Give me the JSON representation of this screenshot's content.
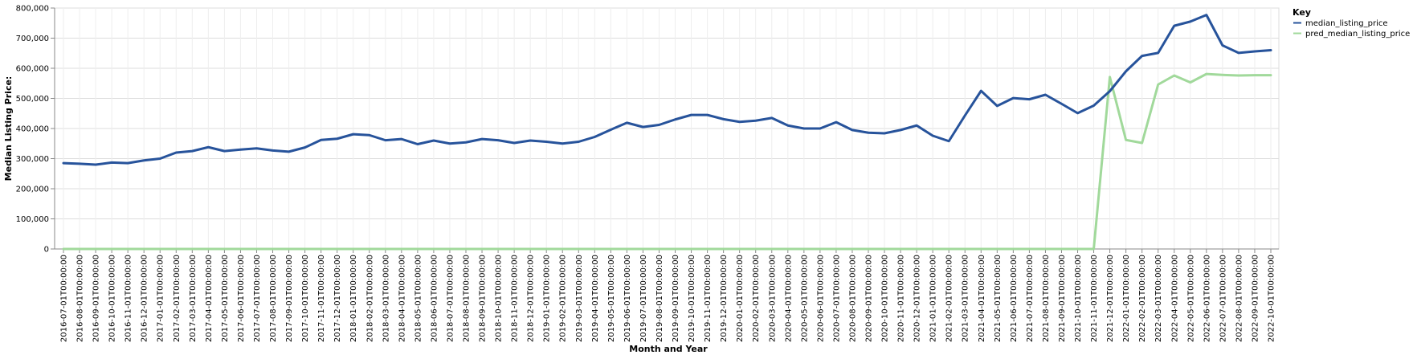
{
  "chart_data": {
    "type": "line",
    "xlabel": "Month and Year",
    "ylabel": "Median Listing Price:",
    "ylim": [
      0,
      800000
    ],
    "yticks": [
      0,
      100000,
      200000,
      300000,
      400000,
      500000,
      600000,
      700000,
      800000
    ],
    "ytick_labels": [
      "0",
      "100,000",
      "200,000",
      "300,000",
      "400,000",
      "500,000",
      "600,000",
      "700,000",
      "800,000"
    ],
    "grid": true,
    "legend": {
      "title": "Key",
      "placement": "right"
    },
    "x": [
      "2016-07-01T00:00:00",
      "2016-08-01T00:00:00",
      "2016-09-01T00:00:00",
      "2016-10-01T00:00:00",
      "2016-11-01T00:00:00",
      "2016-12-01T00:00:00",
      "2017-01-01T00:00:00",
      "2017-02-01T00:00:00",
      "2017-03-01T00:00:00",
      "2017-04-01T00:00:00",
      "2017-05-01T00:00:00",
      "2017-06-01T00:00:00",
      "2017-07-01T00:00:00",
      "2017-08-01T00:00:00",
      "2017-09-01T00:00:00",
      "2017-10-01T00:00:00",
      "2017-11-01T00:00:00",
      "2017-12-01T00:00:00",
      "2018-01-01T00:00:00",
      "2018-02-01T00:00:00",
      "2018-03-01T00:00:00",
      "2018-04-01T00:00:00",
      "2018-05-01T00:00:00",
      "2018-06-01T00:00:00",
      "2018-07-01T00:00:00",
      "2018-08-01T00:00:00",
      "2018-09-01T00:00:00",
      "2018-10-01T00:00:00",
      "2018-11-01T00:00:00",
      "2018-12-01T00:00:00",
      "2019-01-01T00:00:00",
      "2019-02-01T00:00:00",
      "2019-03-01T00:00:00",
      "2019-04-01T00:00:00",
      "2019-05-01T00:00:00",
      "2019-06-01T00:00:00",
      "2019-07-01T00:00:00",
      "2019-08-01T00:00:00",
      "2019-09-01T00:00:00",
      "2019-10-01T00:00:00",
      "2019-11-01T00:00:00",
      "2019-12-01T00:00:00",
      "2020-01-01T00:00:00",
      "2020-02-01T00:00:00",
      "2020-03-01T00:00:00",
      "2020-04-01T00:00:00",
      "2020-05-01T00:00:00",
      "2020-06-01T00:00:00",
      "2020-07-01T00:00:00",
      "2020-08-01T00:00:00",
      "2020-09-01T00:00:00",
      "2020-10-01T00:00:00",
      "2020-11-01T00:00:00",
      "2020-12-01T00:00:00",
      "2021-01-01T00:00:00",
      "2021-02-01T00:00:00",
      "2021-03-01T00:00:00",
      "2021-04-01T00:00:00",
      "2021-05-01T00:00:00",
      "2021-06-01T00:00:00",
      "2021-07-01T00:00:00",
      "2021-08-01T00:00:00",
      "2021-09-01T00:00:00",
      "2021-10-01T00:00:00",
      "2021-11-01T00:00:00",
      "2021-12-01T00:00:00",
      "2022-01-01T00:00:00",
      "2022-02-01T00:00:00",
      "2022-03-01T00:00:00",
      "2022-04-01T00:00:00",
      "2022-05-01T00:00:00",
      "2022-06-01T00:00:00",
      "2022-07-01T00:00:00",
      "2022-08-01T00:00:00",
      "2022-09-01T00:00:00",
      "2022-10-01T00:00:00"
    ],
    "series": [
      {
        "name": "median_listing_price",
        "color": "#27539b",
        "values": [
          285000,
          283000,
          280000,
          287000,
          285000,
          294000,
          300000,
          320000,
          325000,
          338000,
          325000,
          330000,
          334000,
          327000,
          323000,
          337000,
          362000,
          366000,
          381000,
          378000,
          361000,
          365000,
          348000,
          360000,
          350000,
          354000,
          365000,
          361000,
          352000,
          360000,
          356000,
          350000,
          356000,
          372000,
          396000,
          419000,
          405000,
          412000,
          430000,
          445000,
          445000,
          431000,
          422000,
          426000,
          435000,
          410000,
          400000,
          400000,
          421000,
          395000,
          386000,
          384000,
          395000,
          410000,
          376000,
          358000,
          443000,
          525000,
          475000,
          501000,
          497000,
          512000,
          482000,
          451000,
          476000,
          524000,
          590000,
          641000,
          651000,
          741000,
          755000,
          777000,
          676000,
          651000,
          656000,
          660000
        ]
      },
      {
        "name": "pred_median_listing_price",
        "color": "#a1d99b",
        "values": [
          0,
          0,
          0,
          0,
          0,
          0,
          0,
          0,
          0,
          0,
          0,
          0,
          0,
          0,
          0,
          0,
          0,
          0,
          0,
          0,
          0,
          0,
          0,
          0,
          0,
          0,
          0,
          0,
          0,
          0,
          0,
          0,
          0,
          0,
          0,
          0,
          0,
          0,
          0,
          0,
          0,
          0,
          0,
          0,
          0,
          0,
          0,
          0,
          0,
          0,
          0,
          0,
          0,
          0,
          0,
          0,
          0,
          0,
          0,
          0,
          0,
          0,
          0,
          0,
          0,
          571000,
          362000,
          352000,
          546000,
          576000,
          553000,
          581000,
          578000,
          576000,
          577000,
          577000
        ]
      }
    ]
  }
}
